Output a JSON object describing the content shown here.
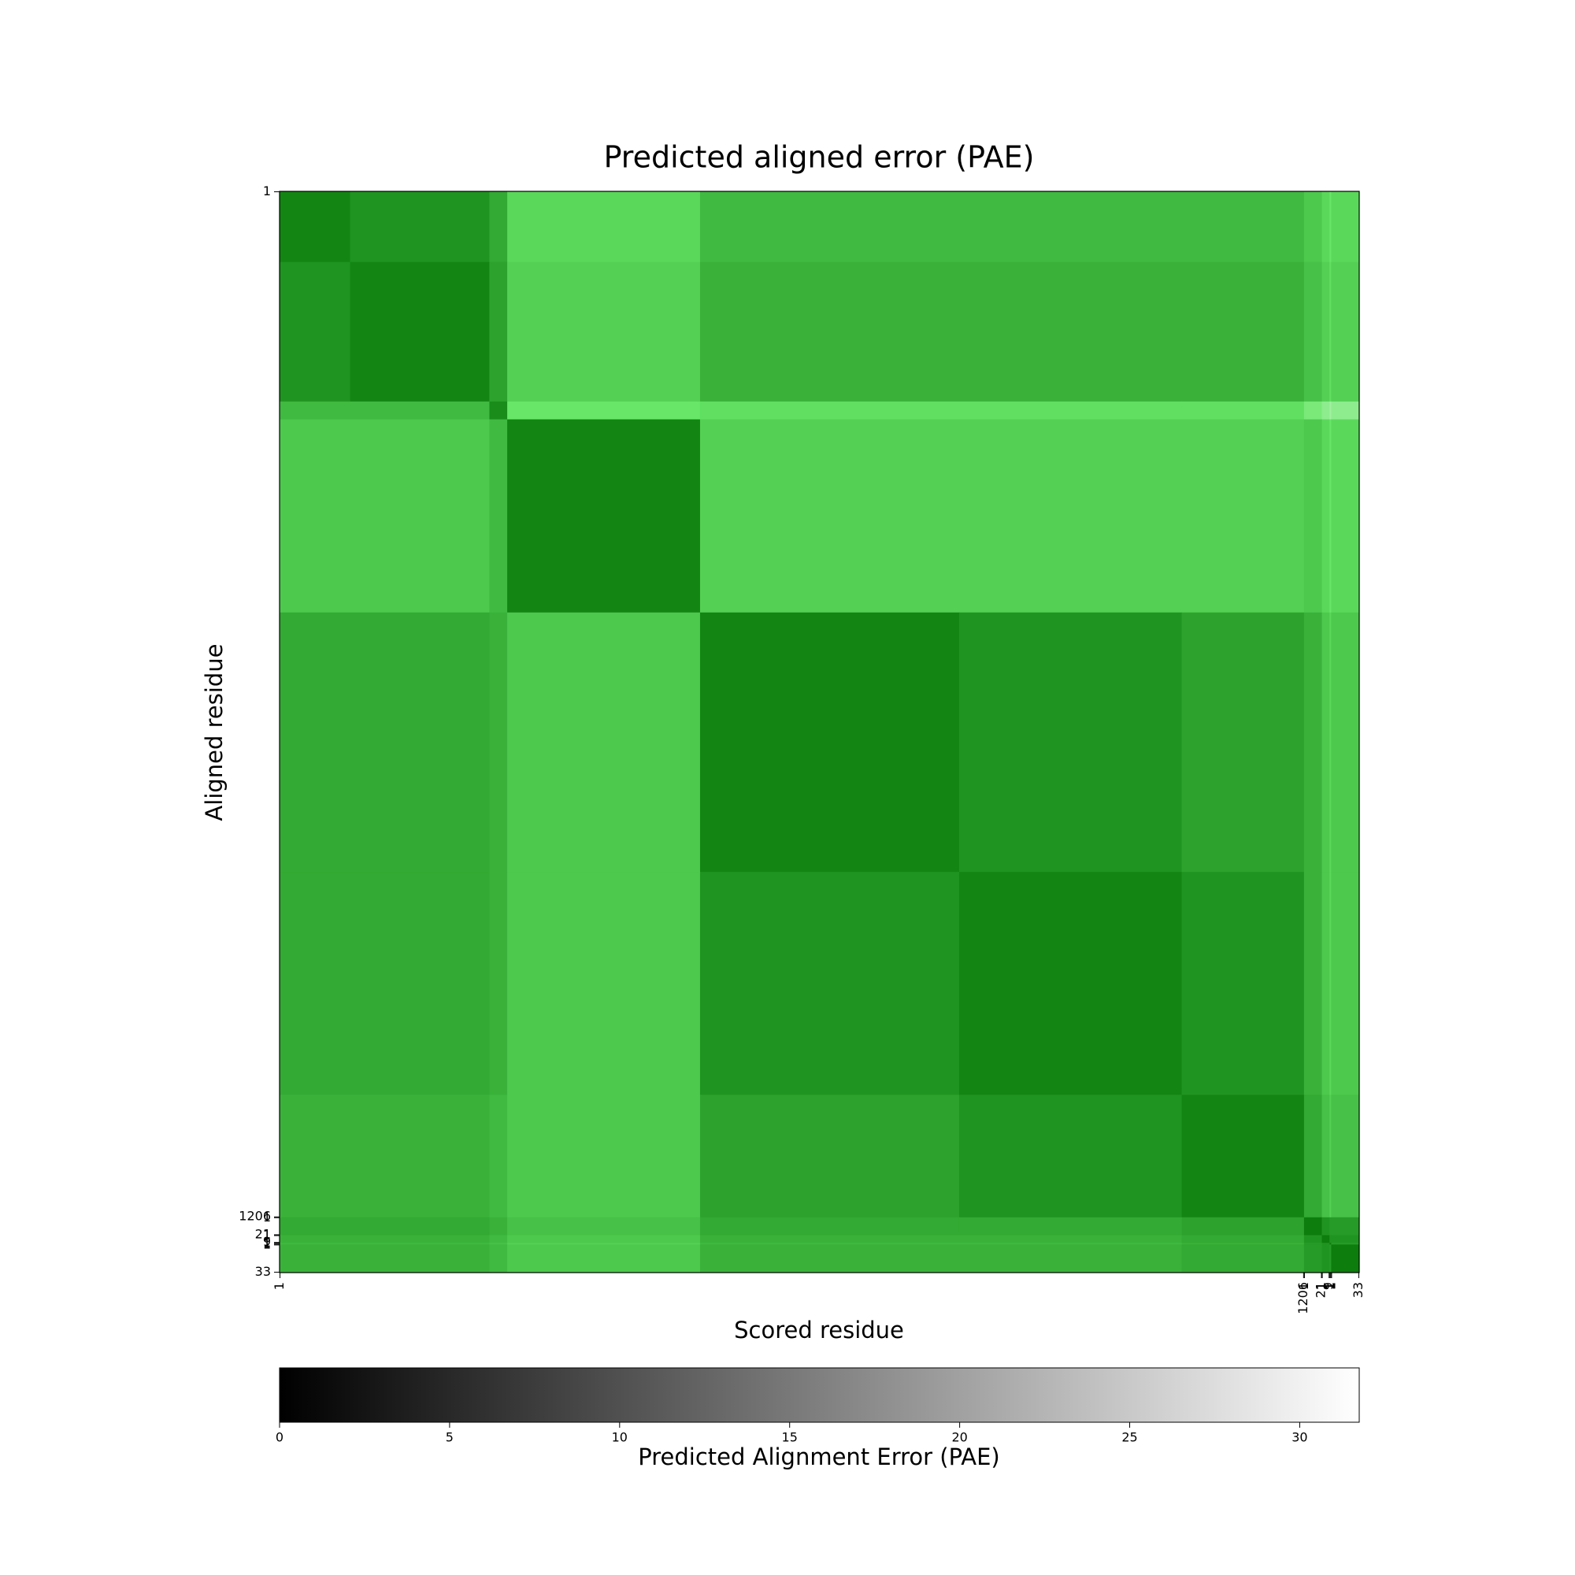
{
  "chart_data": {
    "type": "heatmap",
    "title": "Predicted aligned error (PAE)",
    "x_label": "Scored residue",
    "y_label": "Aligned residue",
    "xlim": [
      0.5,
      1271.5
    ],
    "ylim": [
      0.5,
      1271.5
    ],
    "xticks": [
      1,
      1206,
      {
        "value": 1207,
        "label": "1"
      },
      {
        "value": 1227,
        "label": "21"
      },
      {
        "value": 1228,
        "label": "1"
      },
      {
        "value": 1236,
        "label": "9"
      },
      {
        "value": 1237,
        "label": "1"
      },
      {
        "value": 1238,
        "label": "1"
      },
      {
        "value": 1239,
        "label": "1"
      },
      {
        "value": 1271,
        "label": "33"
      }
    ],
    "yticks": [
      1,
      1206,
      {
        "value": 1207,
        "label": "1"
      },
      {
        "value": 1227,
        "label": "21"
      },
      {
        "value": 1228,
        "label": "1"
      },
      {
        "value": 1236,
        "label": "9"
      },
      {
        "value": 1237,
        "label": "1"
      },
      {
        "value": 1238,
        "label": "1"
      },
      {
        "value": 1239,
        "label": "1"
      },
      {
        "value": 1271,
        "label": "33"
      }
    ],
    "bins": [
      0.5,
      83.5,
      247.5,
      268.5,
      495.5,
      800.5,
      1062.5,
      1206.5,
      1227.5,
      1236.5,
      1238.5,
      1271.5
    ],
    "values": [
      [
        3,
        5,
        8,
        14,
        10,
        10,
        10,
        12,
        14,
        16,
        14
      ],
      [
        5,
        3,
        7,
        13,
        9,
        9,
        9,
        11,
        13,
        15,
        13
      ],
      [
        10,
        10,
        4,
        16,
        15,
        15,
        15,
        18,
        20,
        22,
        20
      ],
      [
        12,
        12,
        10,
        3,
        13,
        13,
        13,
        12,
        14,
        16,
        14
      ],
      [
        8,
        8,
        9,
        12,
        3,
        5,
        7,
        9,
        12,
        14,
        12
      ],
      [
        8,
        8,
        9,
        12,
        5,
        3,
        5,
        9,
        12,
        14,
        12
      ],
      [
        9,
        9,
        10,
        12,
        7,
        5,
        3,
        8,
        11,
        13,
        11
      ],
      [
        8,
        8,
        9,
        11,
        8,
        8,
        7,
        2,
        5,
        6,
        6
      ],
      [
        9,
        9,
        10,
        12,
        9,
        9,
        8,
        5,
        2,
        5,
        5
      ],
      [
        10,
        10,
        11,
        13,
        10,
        10,
        9,
        6,
        5,
        2,
        6
      ],
      [
        9,
        9,
        10,
        12,
        9,
        9,
        8,
        6,
        5,
        6,
        2
      ]
    ],
    "colors": [
      "#006e00",
      "#66e666",
      "#ffffff"
    ],
    "colorbar": {
      "label": "Predicted Alignment Error (PAE)",
      "lim": [
        0,
        31.75
      ],
      "ticks": [
        0,
        5,
        10,
        15,
        20,
        25,
        30
      ],
      "colors": [
        "#000000",
        "#ffffff"
      ]
    }
  }
}
